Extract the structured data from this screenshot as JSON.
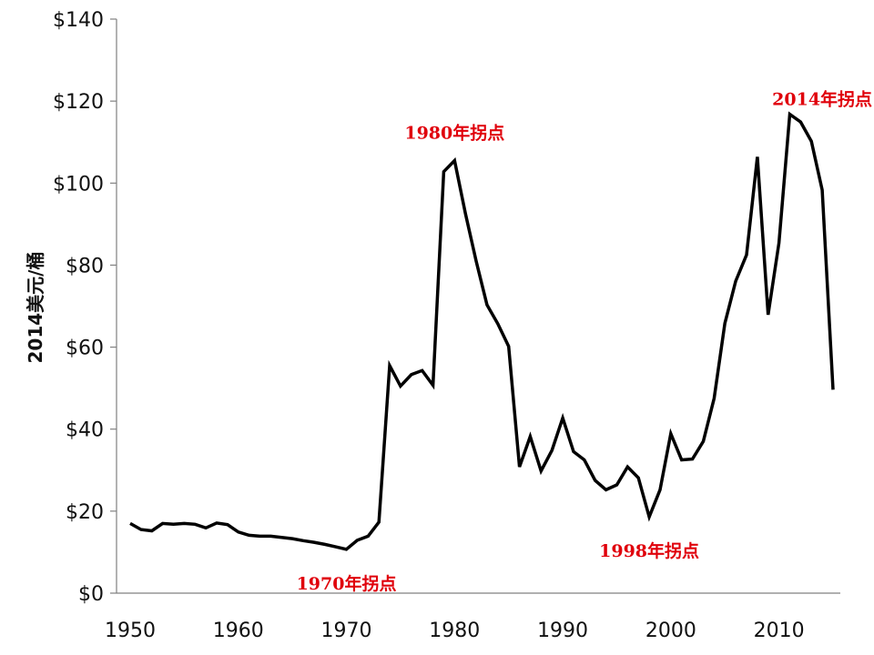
{
  "chart_data": {
    "type": "line",
    "title": "",
    "xlabel": "",
    "ylabel": "2014美元/桶",
    "xlim": [
      1950,
      2015
    ],
    "ylim": [
      0,
      140
    ],
    "x_ticks": [
      1950,
      1960,
      1970,
      1980,
      1990,
      2000,
      2010
    ],
    "x_tick_labels": [
      "1950",
      "1960",
      "1970",
      "1980",
      "1990",
      "2000",
      "2010"
    ],
    "y_ticks": [
      0,
      20,
      40,
      60,
      80,
      100,
      120,
      140
    ],
    "y_tick_labels": [
      "$0",
      "$20",
      "$40",
      "$60",
      "$80",
      "$100",
      "$120",
      "$140"
    ],
    "grid": false,
    "line_color": "#000000",
    "annotation_color": "#e0000b",
    "series": [
      {
        "name": "",
        "x": [
          1950,
          1951,
          1952,
          1953,
          1954,
          1955,
          1956,
          1957,
          1958,
          1959,
          1960,
          1961,
          1962,
          1963,
          1964,
          1965,
          1966,
          1967,
          1968,
          1969,
          1970,
          1971,
          1972,
          1973,
          1974,
          1975,
          1976,
          1977,
          1978,
          1979,
          1980,
          1981,
          1982,
          1983,
          1984,
          1985,
          1986,
          1987,
          1988,
          1989,
          1990,
          1991,
          1992,
          1993,
          1994,
          1995,
          1996,
          1997,
          1998,
          1999,
          2000,
          2001,
          2002,
          2003,
          2004,
          2005,
          2006,
          2007,
          2008,
          2009,
          2010,
          2011,
          2012,
          2013,
          2014,
          2015
        ],
        "y": [
          17,
          15.5,
          15.2,
          17,
          16.8,
          17,
          16.8,
          15.9,
          17.1,
          16.7,
          14.9,
          14.1,
          13.9,
          13.9,
          13.6,
          13.3,
          12.8,
          12.4,
          11.9,
          11.3,
          10.7,
          12.9,
          13.9,
          17.3,
          55.5,
          50.5,
          53.3,
          54.3,
          50.7,
          102.8,
          105.5,
          92.6,
          80.9,
          70.3,
          65.7,
          60.2,
          30.8,
          38.2,
          29.8,
          34.8,
          42.7,
          34.5,
          32.5,
          27.5,
          25.2,
          26.4,
          30.8,
          28.1,
          18.6,
          25.2,
          38.9,
          32.5,
          32.7,
          37,
          47.5,
          65.8,
          76.1,
          82.5,
          106.4,
          67.9,
          85.4,
          116.8,
          114.9,
          110.2,
          98.3,
          49.6
        ]
      }
    ],
    "annotations": [
      {
        "text": "1970年拐点",
        "x": 1970,
        "y": 10.7
      },
      {
        "text": "1980年拐点",
        "x": 1980,
        "y": 105.5
      },
      {
        "text": "1998年拐点",
        "x": 1998,
        "y": 18.6
      },
      {
        "text": "2014年拐点",
        "x": 2014,
        "y": 116.8
      }
    ]
  }
}
